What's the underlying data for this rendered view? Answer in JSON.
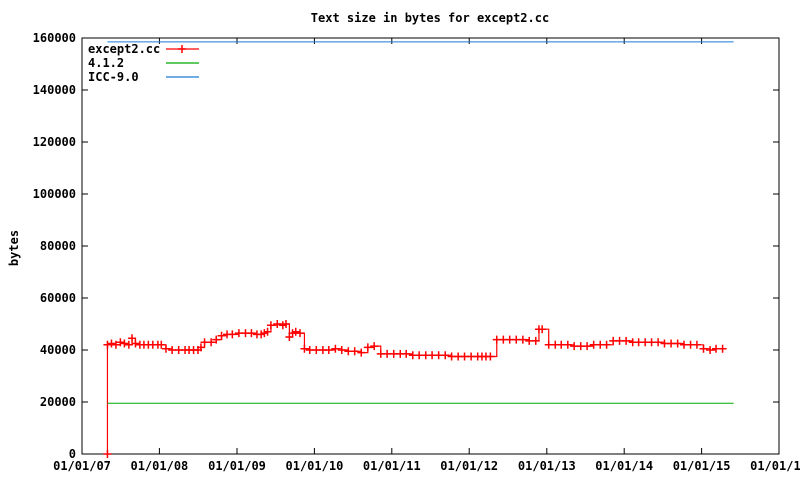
{
  "chart_data": {
    "type": "line",
    "title": "Text size in bytes for except2.cc",
    "xlabel": "",
    "ylabel": "bytes",
    "ylim": [
      0,
      160000
    ],
    "xlim": [
      "2007-01-01",
      "2016-01-01"
    ],
    "y_ticks": [
      0,
      20000,
      40000,
      60000,
      80000,
      100000,
      120000,
      140000,
      160000
    ],
    "y_tick_labels": [
      "0",
      "20000",
      "40000",
      "60000",
      "80000",
      "100000",
      "120000",
      "140000",
      "160000"
    ],
    "x_ticks": [
      "2007-01-01",
      "2008-01-01",
      "2009-01-01",
      "2010-01-01",
      "2011-01-01",
      "2012-01-01",
      "2013-01-01",
      "2014-01-01",
      "2015-01-01",
      "2016-01-01"
    ],
    "x_tick_labels": [
      "01/01/07",
      "01/01/08",
      "01/01/09",
      "01/01/10",
      "01/01/11",
      "01/01/12",
      "01/01/13",
      "01/01/14",
      "01/01/15",
      "01/01/16"
    ],
    "grid": false,
    "legend_position": "top-left",
    "series": [
      {
        "name": "except2.cc",
        "color": "#ff0000",
        "marker": "plus",
        "x": [
          "2007-05-01",
          "2007-05-01",
          "2007-05-20",
          "2007-06-10",
          "2007-07-01",
          "2007-07-20",
          "2007-08-10",
          "2007-08-25",
          "2007-09-10",
          "2007-10-01",
          "2007-10-20",
          "2007-11-10",
          "2007-12-01",
          "2007-12-25",
          "2008-01-10",
          "2008-02-01",
          "2008-03-01",
          "2008-04-01",
          "2008-05-01",
          "2008-05-20",
          "2008-06-10",
          "2008-07-01",
          "2008-07-15",
          "2008-08-01",
          "2008-09-01",
          "2008-09-25",
          "2008-10-20",
          "2008-11-15",
          "2008-12-10",
          "2009-01-10",
          "2009-02-10",
          "2009-03-10",
          "2009-04-05",
          "2009-04-25",
          "2009-05-10",
          "2009-05-25",
          "2009-06-10",
          "2009-07-10",
          "2009-08-05",
          "2009-08-20",
          "2009-09-05",
          "2009-09-20",
          "2009-10-05",
          "2009-10-25",
          "2009-11-15",
          "2009-12-10",
          "2010-01-10",
          "2010-02-10",
          "2010-03-10",
          "2010-04-10",
          "2010-05-10",
          "2010-06-10",
          "2010-07-10",
          "2010-08-10",
          "2010-09-10",
          "2010-10-10",
          "2010-11-10",
          "2010-12-10",
          "2011-01-10",
          "2011-02-10",
          "2011-03-10",
          "2011-04-10",
          "2011-05-10",
          "2011-06-10",
          "2011-07-10",
          "2011-08-10",
          "2011-09-10",
          "2011-10-10",
          "2011-11-10",
          "2011-12-10",
          "2012-01-10",
          "2012-02-10",
          "2012-03-01",
          "2012-03-20",
          "2012-04-10",
          "2012-05-10",
          "2012-06-10",
          "2012-07-10",
          "2012-08-10",
          "2012-09-10",
          "2012-10-10",
          "2012-11-10",
          "2012-11-25",
          "2012-12-10",
          "2013-01-10",
          "2013-02-10",
          "2013-03-10",
          "2013-04-10",
          "2013-05-10",
          "2013-06-10",
          "2013-07-10",
          "2013-08-10",
          "2013-09-10",
          "2013-10-10",
          "2013-11-10",
          "2013-12-10",
          "2014-01-10",
          "2014-02-10",
          "2014-03-10",
          "2014-04-10",
          "2014-05-10",
          "2014-06-10",
          "2014-07-10",
          "2014-08-10",
          "2014-09-10",
          "2014-10-10",
          "2014-11-10",
          "2014-12-10",
          "2015-01-10",
          "2015-02-10",
          "2015-03-10",
          "2015-04-10"
        ],
        "y": [
          0,
          42000,
          42500,
          42000,
          43000,
          42500,
          42000,
          44500,
          42500,
          42000,
          42000,
          42000,
          42000,
          42000,
          42000,
          40500,
          40000,
          40000,
          40000,
          40000,
          40000,
          40000,
          41000,
          43000,
          43000,
          44000,
          45500,
          46000,
          46000,
          46500,
          46500,
          46500,
          46000,
          46000,
          46500,
          47000,
          49500,
          50000,
          49500,
          50000,
          45000,
          46500,
          47000,
          46500,
          40500,
          40000,
          40000,
          40000,
          40000,
          40500,
          40000,
          39500,
          39500,
          39000,
          41000,
          41500,
          38500,
          38500,
          38500,
          38500,
          38500,
          38000,
          38000,
          38000,
          38000,
          38000,
          38000,
          37500,
          37500,
          37500,
          37500,
          37500,
          37500,
          37500,
          37500,
          44000,
          44000,
          44000,
          44000,
          44000,
          43500,
          43500,
          48000,
          48000,
          42000,
          42000,
          42000,
          42000,
          41500,
          41500,
          41500,
          42000,
          42000,
          42000,
          43500,
          43500,
          43500,
          43000,
          43000,
          43000,
          43000,
          43000,
          42500,
          42500,
          42500,
          42000,
          42000,
          42000,
          40500,
          40000,
          40500,
          40500
        ]
      },
      {
        "name": "4.1.2",
        "color": "#00aa00",
        "marker": "none",
        "x": [
          "2007-05-01",
          "2015-06-01"
        ],
        "y": [
          19500,
          19500
        ]
      },
      {
        "name": "ICC-9.0",
        "color": "#1a7ad6",
        "marker": "none",
        "x": [
          "2007-05-01",
          "2015-06-01"
        ],
        "y": [
          158500,
          158500
        ]
      }
    ]
  }
}
